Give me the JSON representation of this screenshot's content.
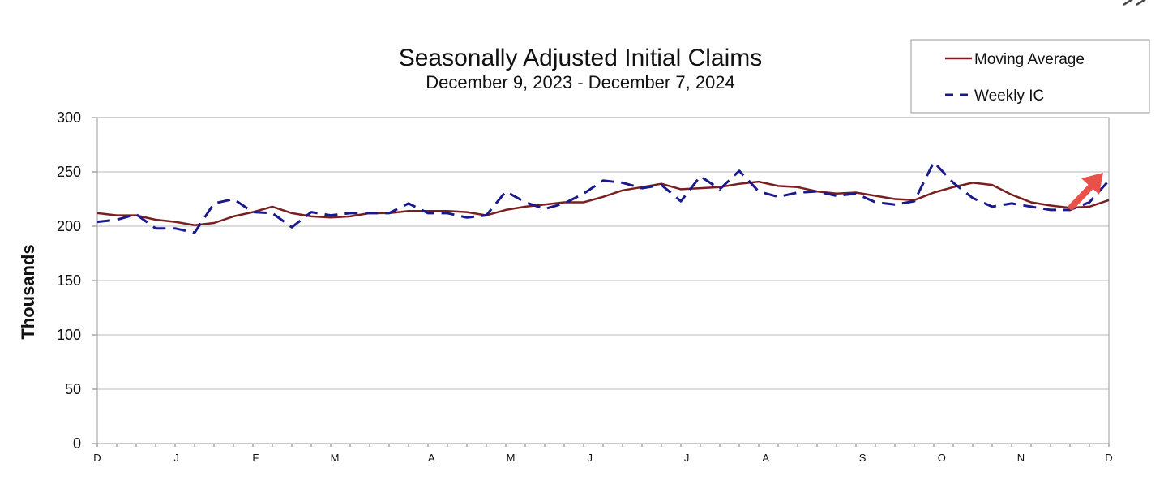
{
  "window": {
    "close_icon": "close-icon"
  },
  "chart_data": {
    "type": "line",
    "title": "Seasonally Adjusted Initial Claims",
    "subtitle": "December 9, 2023 - December 7, 2024",
    "xlabel": "",
    "ylabel": "Thousands",
    "ylim": [
      0,
      300
    ],
    "yticks": [
      "0",
      "50",
      "100",
      "150",
      "200",
      "250",
      "300"
    ],
    "x_tick_labels": [
      "D",
      "J",
      "F",
      "M",
      "A",
      "M",
      "J",
      "J",
      "A",
      "S",
      "O",
      "N",
      "D"
    ],
    "x_tick_weeks": [
      0,
      4.5,
      9,
      13.5,
      19,
      23.5,
      28,
      33.5,
      38,
      43.5,
      48,
      52.5,
      57.5
    ],
    "weeks": 52,
    "grid": true,
    "legend_position": "top-right",
    "series": [
      {
        "name": "Moving Average",
        "color": "#7a1f1f",
        "style": "solid",
        "values": [
          212,
          210,
          210,
          206,
          204,
          201,
          203,
          209,
          213,
          218,
          212,
          209,
          208,
          209,
          212,
          212,
          214,
          214,
          214,
          213,
          210,
          215,
          218,
          220,
          222,
          222,
          227,
          233,
          236,
          239,
          234,
          235,
          236,
          239,
          241,
          237,
          236,
          232,
          230,
          231,
          228,
          225,
          224,
          231,
          236,
          240,
          238,
          229,
          222,
          219,
          217,
          218,
          224
        ]
      },
      {
        "name": "Weekly IC",
        "color": "#1a1a8c",
        "style": "dashed",
        "values": [
          204,
          206,
          211,
          198,
          198,
          194,
          221,
          225,
          213,
          212,
          199,
          213,
          210,
          212,
          212,
          212,
          221,
          212,
          212,
          208,
          210,
          232,
          222,
          216,
          221,
          230,
          242,
          240,
          235,
          238,
          223,
          246,
          234,
          251,
          232,
          227,
          231,
          232,
          228,
          230,
          222,
          220,
          223,
          259,
          240,
          226,
          218,
          221,
          218,
          215,
          215,
          222,
          242
        ]
      }
    ],
    "annotation": "red-arrow-up",
    "colors": {
      "gridline": "#c8c8c8",
      "arrow": "#e8514a"
    }
  }
}
